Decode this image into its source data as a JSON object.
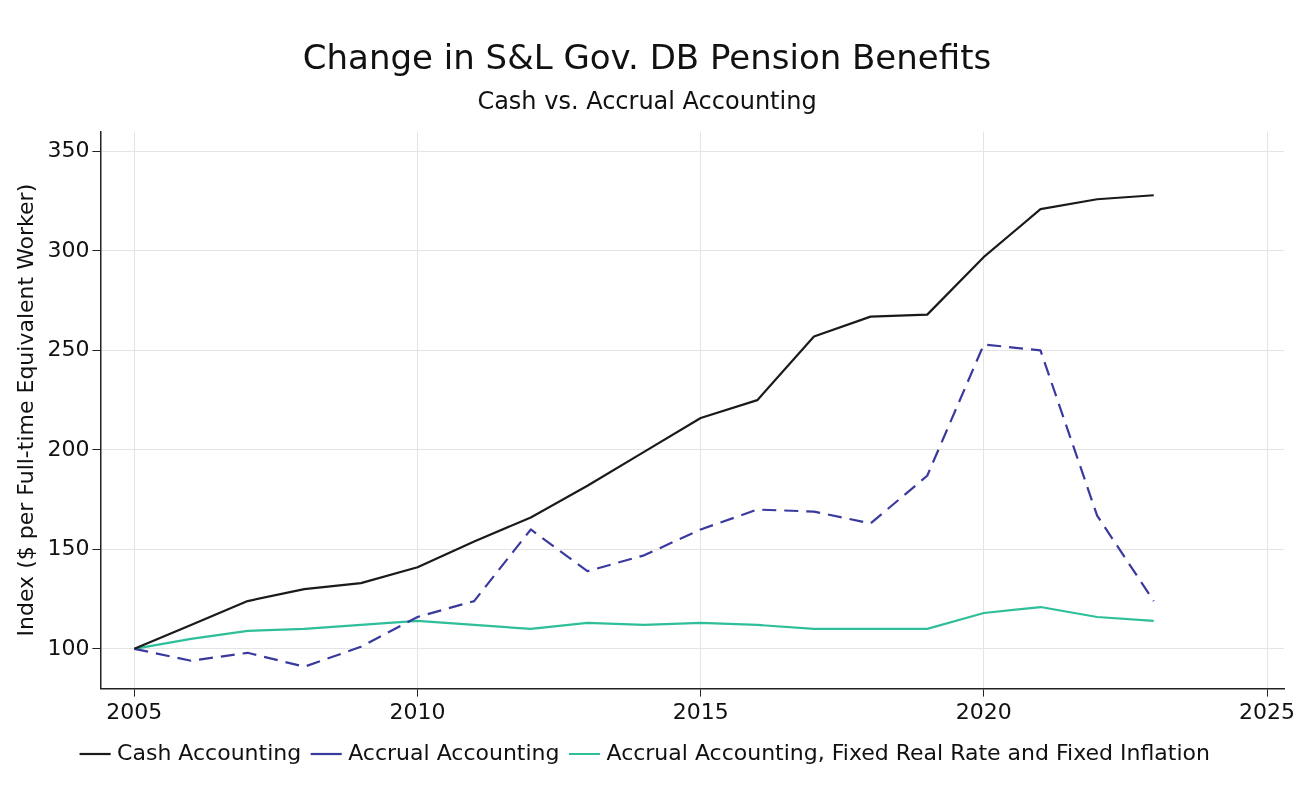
{
  "chart_data": {
    "type": "line",
    "title": "Change in S&L Gov. DB Pension Benefits",
    "subtitle": "Cash vs. Accrual Accounting",
    "ylabel": "Index ($ per Full-time Equivalent Worker)",
    "x": [
      2005,
      2006,
      2007,
      2008,
      2009,
      2010,
      2011,
      2012,
      2013,
      2014,
      2015,
      2016,
      2017,
      2018,
      2019,
      2020,
      2021,
      2022,
      2023
    ],
    "series": [
      {
        "name": "Cash Accounting",
        "color": "#1a1a1a",
        "line_style": "solid",
        "values": [
          100,
          112,
          124,
          130,
          133,
          141,
          154,
          166,
          182,
          199,
          216,
          225,
          257,
          267,
          268,
          297,
          321,
          326,
          328
        ]
      },
      {
        "name": "Accrual Accounting",
        "color": "#3a3a9e",
        "line_style": "dashed",
        "values": [
          100,
          94,
          98,
          91,
          101,
          116,
          124,
          160,
          139,
          147,
          160,
          170,
          169,
          163,
          187,
          253,
          250,
          167,
          124
        ]
      },
      {
        "name": "Accrual Accounting, Fixed Real Rate and Fixed Inflation",
        "color": "#2ebf9a",
        "line_style": "solid",
        "values": [
          100,
          105,
          109,
          110,
          112,
          114,
          112,
          110,
          113,
          112,
          113,
          112,
          110,
          110,
          110,
          118,
          121,
          116,
          114
        ]
      }
    ],
    "xlim": [
      2004.4,
      2025.3
    ],
    "xticks": [
      2005,
      2010,
      2015,
      2020,
      2025
    ],
    "ylim": [
      80,
      360
    ],
    "yticks": [
      100,
      150,
      200,
      250,
      300,
      350
    ],
    "grid": true,
    "legend": "bottom",
    "marker": "none"
  }
}
